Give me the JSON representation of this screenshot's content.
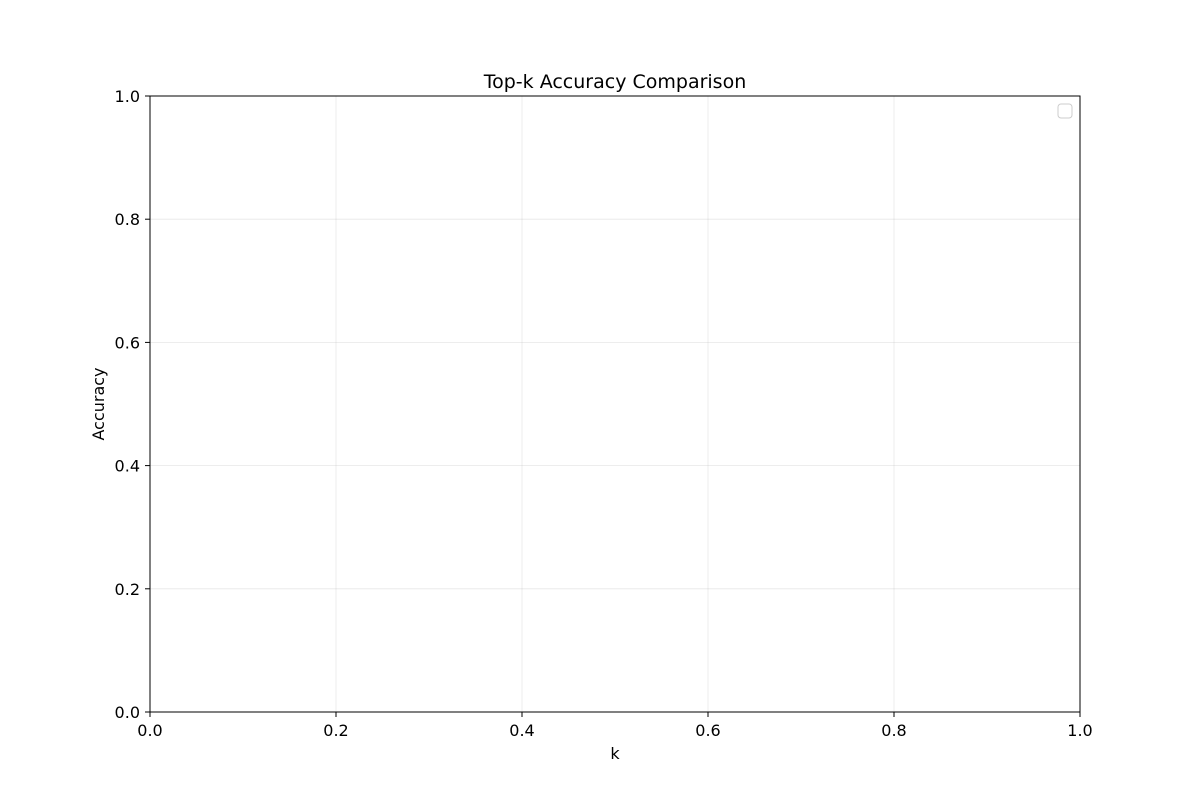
{
  "chart_data": {
    "type": "line",
    "title": "Top-k Accuracy Comparison",
    "xlabel": "k",
    "ylabel": "Accuracy",
    "xlim": [
      0.0,
      1.0
    ],
    "ylim": [
      0.0,
      1.0
    ],
    "x_ticks": [
      "0.0",
      "0.2",
      "0.4",
      "0.6",
      "0.8",
      "1.0"
    ],
    "y_ticks": [
      "0.0",
      "0.2",
      "0.4",
      "0.6",
      "0.8",
      "1.0"
    ],
    "grid": true,
    "legend_position": "top-right",
    "legend_entries": [],
    "series": []
  }
}
